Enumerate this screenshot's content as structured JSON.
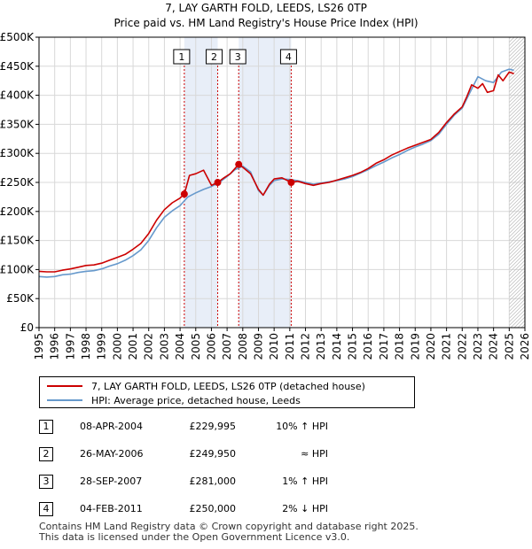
{
  "chart_data": {
    "type": "line",
    "title": "7, LAY GARTH FOLD, LEEDS, LS26 0TP",
    "subtitle": "Price paid vs. HM Land Registry's House Price Index (HPI)",
    "xlabel": "",
    "ylabel": "",
    "xlim": [
      1995,
      2026
    ],
    "ylim": [
      0,
      500000
    ],
    "y_ticks": [
      0,
      50000,
      100000,
      150000,
      200000,
      250000,
      300000,
      350000,
      400000,
      450000,
      500000
    ],
    "y_tick_labels": [
      "£0",
      "£50K",
      "£100K",
      "£150K",
      "£200K",
      "£250K",
      "£300K",
      "£350K",
      "£400K",
      "£450K",
      "£500K"
    ],
    "x_ticks": [
      1995,
      1996,
      1997,
      1998,
      1999,
      2000,
      2001,
      2002,
      2003,
      2004,
      2005,
      2006,
      2007,
      2008,
      2009,
      2010,
      2011,
      2012,
      2013,
      2014,
      2015,
      2016,
      2017,
      2018,
      2019,
      2020,
      2021,
      2022,
      2023,
      2024,
      2025,
      2026
    ],
    "x_tick_labels": [
      "1995",
      "1996",
      "1997",
      "1998",
      "1999",
      "2000",
      "2001",
      "2002",
      "2003",
      "2004",
      "2005",
      "2006",
      "2007",
      "2008",
      "2009",
      "2010",
      "2011",
      "2012",
      "2013",
      "2014",
      "2015",
      "2016",
      "2017",
      "2018",
      "2019",
      "2020",
      "2021",
      "2022",
      "2023",
      "2024",
      "2025",
      "2026"
    ],
    "grid": true,
    "shaded_periods": [
      [
        2004.27,
        2006.4
      ],
      [
        2007.74,
        2011.09
      ]
    ],
    "hatched_region_start": 2025.0,
    "markers": [
      {
        "label": "1",
        "x": 2004.27,
        "y": 229995
      },
      {
        "label": "2",
        "x": 2006.4,
        "y": 249950
      },
      {
        "label": "3",
        "x": 2007.74,
        "y": 281000
      },
      {
        "label": "4",
        "x": 2011.09,
        "y": 250000
      }
    ],
    "series": [
      {
        "name": "7, LAY GARTH FOLD, LEEDS, LS26 0TP (detached house)",
        "color": "#cc0000",
        "x": [
          1995,
          1995.5,
          1996,
          1996.5,
          1997,
          1997.5,
          1998,
          1998.5,
          1999,
          1999.5,
          2000,
          2000.5,
          2001,
          2001.5,
          2002,
          2002.5,
          2003,
          2003.5,
          2004,
          2004.27,
          2004.6,
          2005,
          2005.5,
          2006,
          2006.4,
          2006.8,
          2007.2,
          2007.74,
          2008,
          2008.5,
          2009,
          2009.3,
          2009.7,
          2010,
          2010.5,
          2011.09,
          2011.5,
          2012,
          2012.5,
          2013,
          2013.5,
          2014,
          2014.5,
          2015,
          2015.5,
          2016,
          2016.5,
          2017,
          2017.5,
          2018,
          2018.5,
          2019,
          2019.5,
          2020,
          2020.5,
          2021,
          2021.5,
          2022,
          2022.3,
          2022.6,
          2023,
          2023.3,
          2023.6,
          2024,
          2024.3,
          2024.6,
          2025,
          2025.3
        ],
        "y": [
          97000,
          96000,
          96000,
          99000,
          101000,
          104000,
          107000,
          108000,
          111000,
          116000,
          121000,
          126000,
          135000,
          145000,
          162000,
          185000,
          203000,
          215000,
          223000,
          229995,
          262000,
          265000,
          271000,
          245000,
          249950,
          258000,
          265000,
          281000,
          276000,
          265000,
          238000,
          228000,
          247000,
          256000,
          258000,
          250000,
          252000,
          248000,
          245000,
          248000,
          250000,
          254000,
          258000,
          262000,
          267000,
          274000,
          283000,
          289000,
          297000,
          303000,
          309000,
          314000,
          319000,
          324000,
          336000,
          353000,
          368000,
          380000,
          398000,
          418000,
          412000,
          420000,
          405000,
          408000,
          435000,
          425000,
          440000,
          437000
        ]
      },
      {
        "name": "HPI: Average price, detached house, Leeds",
        "color": "#6699cc",
        "x": [
          1995,
          1995.5,
          1996,
          1996.5,
          1997,
          1997.5,
          1998,
          1998.5,
          1999,
          1999.5,
          2000,
          2000.5,
          2001,
          2001.5,
          2002,
          2002.5,
          2003,
          2003.5,
          2004,
          2004.5,
          2005,
          2005.5,
          2006,
          2006.5,
          2007,
          2007.5,
          2008,
          2008.5,
          2009,
          2009.3,
          2009.7,
          2010,
          2010.5,
          2011,
          2011.5,
          2012,
          2012.5,
          2013,
          2013.5,
          2014,
          2014.5,
          2015,
          2015.5,
          2016,
          2016.5,
          2017,
          2017.5,
          2018,
          2018.5,
          2019,
          2019.5,
          2020,
          2020.5,
          2021,
          2021.5,
          2022,
          2022.5,
          2023,
          2023.5,
          2024,
          2024.5,
          2025,
          2025.3
        ],
        "y": [
          88000,
          87000,
          88000,
          91000,
          92000,
          95000,
          97000,
          98000,
          101000,
          106000,
          110000,
          116000,
          124000,
          134000,
          150000,
          172000,
          190000,
          201000,
          210000,
          225000,
          232000,
          238000,
          243000,
          250000,
          260000,
          272000,
          278000,
          268000,
          236000,
          228000,
          245000,
          253000,
          256000,
          255000,
          253000,
          250000,
          247000,
          249000,
          251000,
          253000,
          256000,
          260000,
          266000,
          272000,
          279000,
          285000,
          292000,
          298000,
          305000,
          311000,
          316000,
          322000,
          333000,
          350000,
          366000,
          378000,
          405000,
          432000,
          425000,
          422000,
          440000,
          445000,
          443000
        ]
      }
    ]
  },
  "legend": {
    "property_label": "7, LAY GARTH FOLD, LEEDS, LS26 0TP (detached house)",
    "hpi_label": "HPI: Average price, detached house, Leeds"
  },
  "transactions": [
    {
      "num": "1",
      "date": "08-APR-2004",
      "price": "£229,995",
      "relation": "10% ↑ HPI"
    },
    {
      "num": "2",
      "date": "26-MAY-2006",
      "price": "£249,950",
      "relation": "≈ HPI"
    },
    {
      "num": "3",
      "date": "28-SEP-2007",
      "price": "£281,000",
      "relation": "1% ↑ HPI"
    },
    {
      "num": "4",
      "date": "04-FEB-2011",
      "price": "£250,000",
      "relation": "2% ↓ HPI"
    }
  ],
  "footer": {
    "line1": "Contains HM Land Registry data © Crown copyright and database right 2025.",
    "line2": "This data is licensed under the Open Government Licence v3.0."
  },
  "colors": {
    "property": "#cc0000",
    "hpi": "#6699cc",
    "shade": "#e8eef8",
    "grid": "#d8d8d8"
  }
}
